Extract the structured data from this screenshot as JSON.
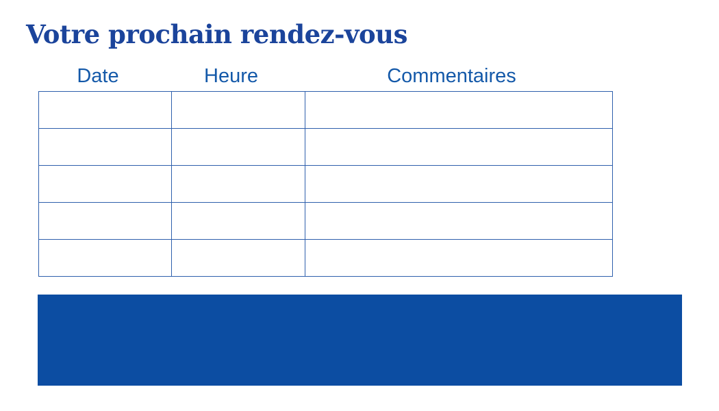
{
  "document": {
    "title": "Votre prochain rendez-vous"
  },
  "table": {
    "headers": [
      "Date",
      "Heure",
      "Commentaires"
    ],
    "row_count": 5,
    "rows": [
      [
        "",
        "",
        ""
      ],
      [
        "",
        "",
        ""
      ],
      [
        "",
        "",
        ""
      ],
      [
        "",
        "",
        ""
      ],
      [
        "",
        "",
        ""
      ]
    ]
  },
  "banner": {
    "text": ""
  },
  "colors": {
    "title_text": "#1B449B",
    "header_text": "#1459A9",
    "table_border": "#2E5FAC",
    "banner_fill": "#0C4DA2",
    "background": "#FFFFFF"
  }
}
